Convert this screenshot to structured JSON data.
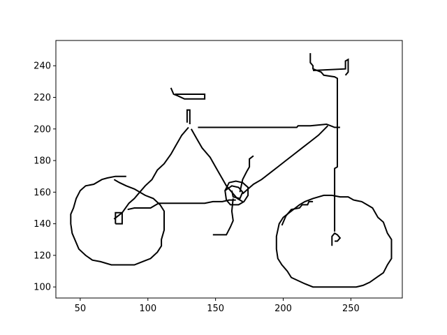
{
  "chart_data": {
    "type": "line",
    "title": "",
    "xlabel": "",
    "ylabel": "",
    "xlim": [
      32,
      288
    ],
    "ylim": [
      93,
      256
    ],
    "xticks": [
      50,
      100,
      150,
      200,
      250
    ],
    "yticks": [
      100,
      120,
      140,
      160,
      180,
      200,
      220,
      240
    ],
    "grid": false,
    "legend": "none",
    "line_color": "#000000",
    "series": [
      {
        "label": "rear-wheel",
        "points": [
          [
            84,
            170
          ],
          [
            76,
            170
          ],
          [
            70,
            169
          ],
          [
            66,
            168
          ],
          [
            60,
            165
          ],
          [
            54,
            164
          ],
          [
            50,
            161
          ],
          [
            47,
            156
          ],
          [
            45,
            150
          ],
          [
            43,
            146
          ],
          [
            43,
            140
          ],
          [
            44,
            134
          ],
          [
            47,
            128
          ],
          [
            49,
            124
          ],
          [
            54,
            120
          ],
          [
            59,
            117
          ],
          [
            65,
            116
          ],
          [
            73,
            114
          ],
          [
            90,
            114
          ],
          [
            96,
            116
          ],
          [
            102,
            118
          ],
          [
            107,
            122
          ],
          [
            110,
            126
          ],
          [
            110,
            130
          ],
          [
            112,
            136
          ],
          [
            112,
            144
          ],
          [
            112,
            148
          ],
          [
            109,
            152
          ],
          [
            104,
            156
          ],
          [
            98,
            158
          ],
          [
            90,
            162
          ],
          [
            84,
            164
          ],
          [
            79,
            166
          ],
          [
            77,
            167
          ],
          [
            75,
            168
          ]
        ]
      },
      {
        "label": "front-wheel",
        "points": [
          [
            236,
            158
          ],
          [
            242,
            157
          ],
          [
            248,
            157
          ],
          [
            252,
            155
          ],
          [
            258,
            154
          ],
          [
            262,
            152
          ],
          [
            266,
            150
          ],
          [
            270,
            144
          ],
          [
            274,
            141
          ],
          [
            277,
            134
          ],
          [
            280,
            130
          ],
          [
            280,
            125
          ],
          [
            280,
            118
          ],
          [
            277,
            114
          ],
          [
            274,
            109
          ],
          [
            269,
            106
          ],
          [
            264,
            103
          ],
          [
            259,
            101
          ],
          [
            254,
            100
          ],
          [
            236,
            100
          ],
          [
            222,
            100
          ],
          [
            216,
            102
          ],
          [
            206,
            106
          ],
          [
            203,
            110
          ],
          [
            199,
            114
          ],
          [
            196,
            118
          ],
          [
            195,
            124
          ],
          [
            195,
            132
          ],
          [
            197,
            140
          ],
          [
            200,
            144
          ],
          [
            206,
            148
          ],
          [
            212,
            152
          ],
          [
            216,
            154
          ],
          [
            222,
            156
          ],
          [
            230,
            158
          ],
          [
            236,
            158
          ]
        ]
      },
      {
        "label": "partial-arc",
        "points": [
          [
            199,
            139
          ],
          [
            202,
            145
          ],
          [
            206,
            149
          ],
          [
            212,
            150
          ],
          [
            214,
            152
          ],
          [
            218,
            152
          ],
          [
            219,
            154
          ],
          [
            222,
            154
          ]
        ]
      },
      {
        "label": "top-tube",
        "points": [
          [
            137,
            201
          ],
          [
            210,
            201
          ],
          [
            211,
            202
          ],
          [
            220,
            202
          ],
          [
            232,
            203
          ],
          [
            235,
            202
          ],
          [
            238,
            201
          ],
          [
            242,
            201
          ]
        ]
      },
      {
        "label": "down-tube",
        "points": [
          [
            233,
            202
          ],
          [
            226,
            196
          ],
          [
            220,
            192
          ],
          [
            214,
            188
          ],
          [
            208,
            184
          ],
          [
            202,
            180
          ],
          [
            196,
            176
          ],
          [
            190,
            172
          ],
          [
            184,
            168
          ],
          [
            178,
            165
          ],
          [
            174,
            162
          ],
          [
            170,
            159
          ]
        ]
      },
      {
        "label": "seat-tube",
        "points": [
          [
            132,
            200
          ],
          [
            136,
            194
          ],
          [
            140,
            188
          ],
          [
            146,
            182
          ],
          [
            150,
            176
          ],
          [
            154,
            170
          ],
          [
            158,
            164
          ],
          [
            162,
            160
          ],
          [
            166,
            156
          ],
          [
            170,
            154
          ]
        ]
      },
      {
        "label": "seat-stay",
        "points": [
          [
            130,
            201
          ],
          [
            125,
            196
          ],
          [
            121,
            190
          ],
          [
            117,
            184
          ],
          [
            112,
            178
          ],
          [
            107,
            174
          ],
          [
            103,
            168
          ],
          [
            98,
            164
          ],
          [
            94,
            160
          ],
          [
            90,
            156
          ],
          [
            86,
            153
          ],
          [
            81,
            147
          ],
          [
            75,
            143
          ]
        ]
      },
      {
        "label": "chain-stay",
        "points": [
          [
            85,
            149
          ],
          [
            90,
            150
          ],
          [
            102,
            150
          ],
          [
            106,
            152
          ],
          [
            108,
            153
          ],
          [
            142,
            153
          ],
          [
            148,
            154
          ],
          [
            155,
            154
          ],
          [
            160,
            155
          ],
          [
            165,
            155
          ]
        ]
      },
      {
        "label": "seatpost",
        "points": [
          [
            129,
            204
          ],
          [
            129,
            212
          ],
          [
            131,
            212
          ],
          [
            131,
            203
          ]
        ]
      },
      {
        "label": "saddle",
        "points": [
          [
            117,
            226
          ],
          [
            119,
            222
          ],
          [
            122,
            221
          ],
          [
            127,
            219
          ],
          [
            142,
            219
          ],
          [
            142,
            222
          ],
          [
            120,
            222
          ]
        ]
      },
      {
        "label": "fork",
        "points": [
          [
            238,
            135
          ],
          [
            238,
            175
          ],
          [
            240,
            176
          ],
          [
            240,
            232
          ],
          [
            238,
            233
          ],
          [
            230,
            234
          ],
          [
            228,
            236
          ],
          [
            222,
            238
          ],
          [
            222,
            240
          ],
          [
            220,
            242
          ],
          [
            220,
            248
          ]
        ]
      },
      {
        "label": "handlebar",
        "points": [
          [
            222,
            237
          ],
          [
            246,
            238
          ],
          [
            246,
            243
          ],
          [
            248,
            244
          ],
          [
            248,
            236
          ],
          [
            246,
            234
          ]
        ]
      },
      {
        "label": "front-hub",
        "points": [
          [
            236,
            126
          ],
          [
            236,
            132
          ],
          [
            238,
            134
          ],
          [
            240,
            133
          ],
          [
            242,
            131
          ],
          [
            240,
            129
          ],
          [
            238,
            129
          ]
        ]
      },
      {
        "label": "rear-dropout",
        "points": [
          [
            76,
            140
          ],
          [
            76,
            147
          ],
          [
            81,
            147
          ],
          [
            81,
            140
          ],
          [
            76,
            140
          ]
        ]
      },
      {
        "label": "chainring",
        "points": [
          [
            157,
            161
          ],
          [
            160,
            166
          ],
          [
            165,
            167
          ],
          [
            170,
            166
          ],
          [
            174,
            163
          ],
          [
            174,
            158
          ],
          [
            171,
            154
          ],
          [
            167,
            152
          ],
          [
            161,
            152
          ],
          [
            158,
            155
          ],
          [
            157,
            161
          ],
          [
            162,
            164
          ],
          [
            167,
            163
          ],
          [
            170,
            160
          ],
          [
            168,
            156
          ],
          [
            163,
            157
          ],
          [
            162,
            161
          ]
        ]
      },
      {
        "label": "crank-pedal-up",
        "points": [
          [
            168,
            160
          ],
          [
            170,
            168
          ],
          [
            173,
            173
          ],
          [
            175,
            176
          ],
          [
            175,
            181
          ],
          [
            178,
            183
          ]
        ]
      },
      {
        "label": "crank-pedal-down",
        "points": [
          [
            163,
            156
          ],
          [
            162,
            148
          ],
          [
            163,
            142
          ],
          [
            161,
            138
          ],
          [
            158,
            133
          ],
          [
            148,
            133
          ]
        ]
      }
    ]
  }
}
